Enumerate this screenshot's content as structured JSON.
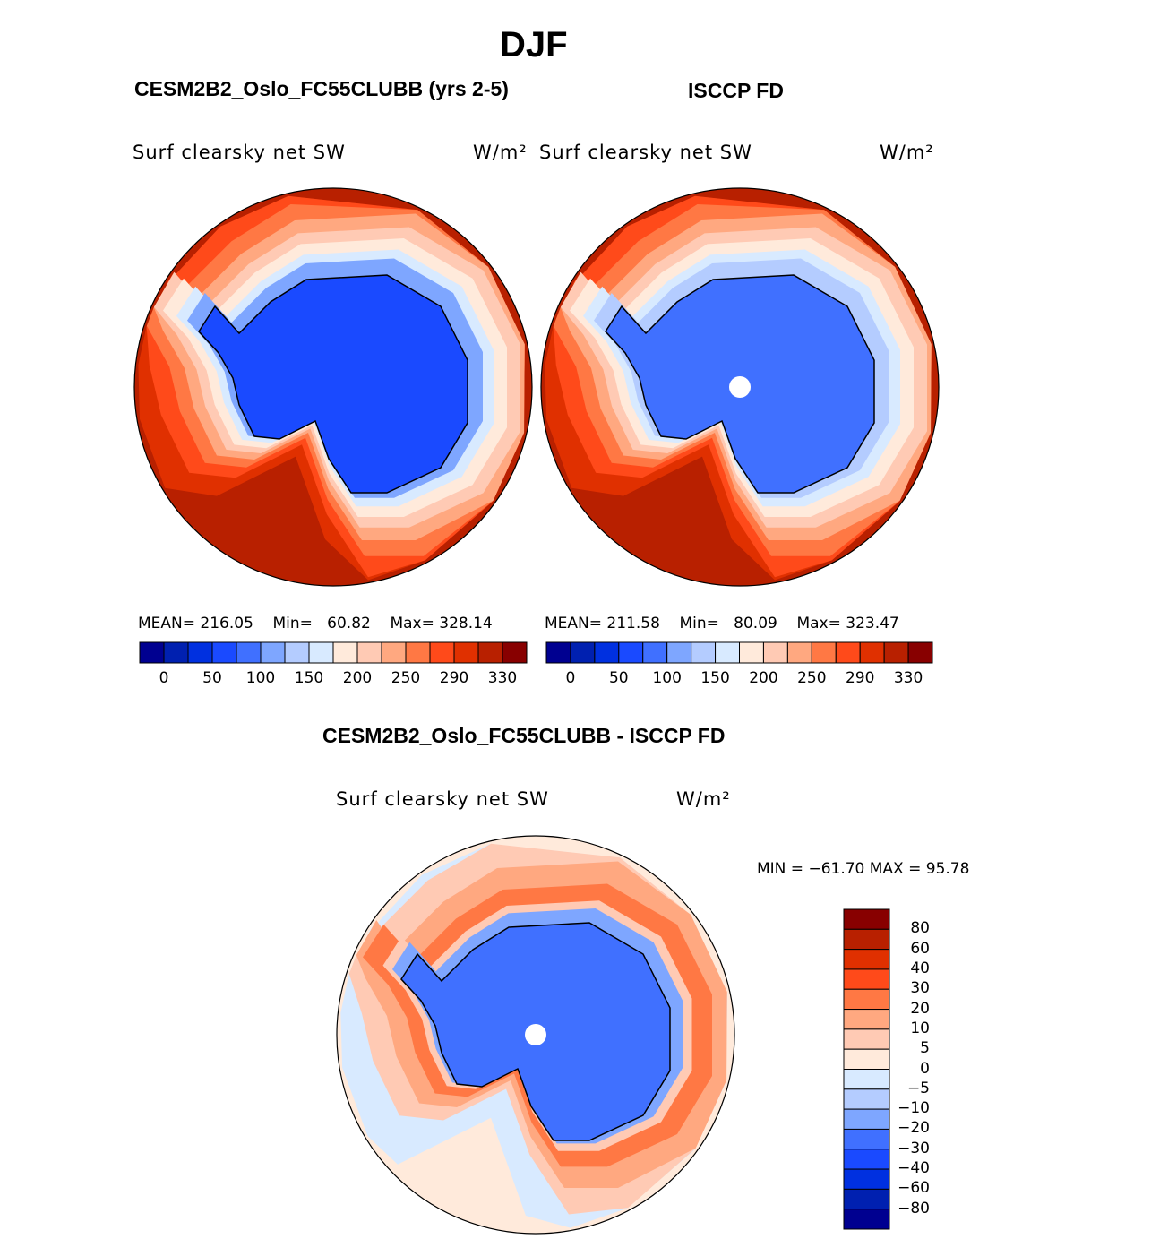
{
  "chart_data": [
    {
      "type": "heatmap",
      "projection": "south-polar-stereographic",
      "title": "CESM2B2_Oslo_FC55CLUBB (yrs 2-5)",
      "variable": "Surf clearsky net SW",
      "units": "W/m²",
      "stats": {
        "mean_label": "MEAN=",
        "mean": "216.05",
        "min_label": "Min=",
        "min": "60.82",
        "max_label": "Max=",
        "max": "328.14"
      },
      "levels": [
        "0",
        "50",
        "100",
        "150",
        "200",
        "250",
        "290",
        "330"
      ]
    },
    {
      "type": "heatmap",
      "projection": "south-polar-stereographic",
      "title": "ISCCP FD",
      "variable": "Surf clearsky net SW",
      "units": "W/m²",
      "stats": {
        "mean_label": "MEAN=",
        "mean": "211.58",
        "min_label": "Min=",
        "min": "80.09",
        "max_label": "Max=",
        "max": "323.47"
      },
      "levels": [
        "0",
        "50",
        "100",
        "150",
        "200",
        "250",
        "290",
        "330"
      ]
    },
    {
      "type": "heatmap",
      "projection": "south-polar-stereographic",
      "title": "CESM2B2_Oslo_FC55CLUBB - ISCCP FD",
      "variable": "Surf clearsky net SW",
      "units": "W/m²",
      "stats": {
        "text": "MIN = −61.70 MAX =  95.78"
      },
      "levels": [
        "80",
        "60",
        "40",
        "30",
        "20",
        "10",
        "5",
        "0",
        "−5",
        "−10",
        "−20",
        "−30",
        "−40",
        "−60",
        "−80"
      ]
    }
  ],
  "season": "DJF",
  "colors": [
    "#000090",
    "#0020b0",
    "#0030e0",
    "#1a4aff",
    "#4070ff",
    "#7ea6ff",
    "#b4ccff",
    "#d8eaff",
    "#ffeadb",
    "#ffcab4",
    "#ffa880",
    "#ff7844",
    "#ff4a1a",
    "#e03000",
    "#b82000",
    "#880000"
  ]
}
